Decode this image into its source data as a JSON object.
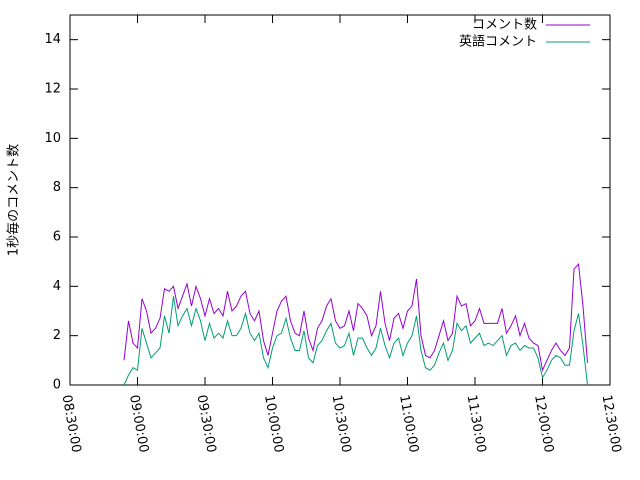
{
  "chart_data": {
    "type": "line",
    "ylabel": "1秒毎のコメント数",
    "x": [
      "08:54:00",
      "08:56:00",
      "08:58:00",
      "09:00:00",
      "09:02:00",
      "09:04:00",
      "09:06:00",
      "09:08:00",
      "09:10:00",
      "09:12:00",
      "09:14:00",
      "09:16:00",
      "09:18:00",
      "09:20:00",
      "09:22:00",
      "09:24:00",
      "09:26:00",
      "09:28:00",
      "09:30:00",
      "09:32:00",
      "09:34:00",
      "09:36:00",
      "09:38:00",
      "09:40:00",
      "09:42:00",
      "09:44:00",
      "09:46:00",
      "09:48:00",
      "09:50:00",
      "09:52:00",
      "09:54:00",
      "09:56:00",
      "09:58:00",
      "10:00:00",
      "10:02:00",
      "10:04:00",
      "10:06:00",
      "10:08:00",
      "10:10:00",
      "10:12:00",
      "10:14:00",
      "10:16:00",
      "10:18:00",
      "10:20:00",
      "10:22:00",
      "10:24:00",
      "10:26:00",
      "10:28:00",
      "10:30:00",
      "10:32:00",
      "10:34:00",
      "10:36:00",
      "10:38:00",
      "10:40:00",
      "10:42:00",
      "10:44:00",
      "10:46:00",
      "10:48:00",
      "10:50:00",
      "10:52:00",
      "10:54:00",
      "10:56:00",
      "10:58:00",
      "11:00:00",
      "11:02:00",
      "11:04:00",
      "11:06:00",
      "11:08:00",
      "11:10:00",
      "11:12:00",
      "11:14:00",
      "11:16:00",
      "11:18:00",
      "11:20:00",
      "11:22:00",
      "11:24:00",
      "11:26:00",
      "11:28:00",
      "11:30:00",
      "11:32:00",
      "11:34:00",
      "11:36:00",
      "11:38:00",
      "11:40:00",
      "11:42:00",
      "11:44:00",
      "11:46:00",
      "11:48:00",
      "11:50:00",
      "11:52:00",
      "11:54:00",
      "11:56:00",
      "11:58:00",
      "12:00:00",
      "12:02:00",
      "12:04:00",
      "12:06:00",
      "12:08:00",
      "12:10:00",
      "12:12:00",
      "12:14:00",
      "12:16:00",
      "12:18:00",
      "12:20:00"
    ],
    "series": [
      {
        "name": "コメント数",
        "color": "#9400d3",
        "values": [
          1.0,
          2.6,
          1.7,
          1.5,
          3.5,
          3.0,
          2.1,
          2.3,
          2.7,
          3.9,
          3.8,
          4.0,
          3.1,
          3.6,
          4.1,
          3.2,
          4.0,
          3.5,
          2.8,
          3.5,
          2.9,
          3.1,
          2.8,
          3.8,
          3.0,
          3.2,
          3.6,
          3.8,
          2.9,
          2.6,
          3.0,
          1.8,
          1.2,
          2.1,
          3.0,
          3.4,
          3.6,
          2.6,
          2.1,
          2.0,
          3.0,
          1.9,
          1.4,
          2.3,
          2.6,
          3.2,
          3.5,
          2.6,
          2.3,
          2.4,
          3.0,
          2.2,
          3.3,
          3.1,
          2.8,
          2.0,
          2.4,
          3.8,
          2.5,
          1.8,
          2.7,
          2.9,
          2.3,
          3.0,
          3.2,
          4.3,
          2.0,
          1.2,
          1.1,
          1.4,
          2.0,
          2.6,
          1.8,
          2.1,
          3.6,
          3.2,
          3.3,
          2.4,
          2.6,
          3.1,
          2.5,
          2.5,
          2.5,
          2.5,
          3.1,
          2.1,
          2.4,
          2.8,
          2.0,
          2.5,
          1.9,
          1.7,
          1.6,
          0.6,
          1.0,
          1.4,
          1.7,
          1.4,
          1.2,
          1.5,
          4.7,
          4.9,
          3.2,
          0.9
        ]
      },
      {
        "name": "英語コメント",
        "color": "#009e73",
        "values": [
          0.0,
          0.4,
          0.7,
          0.6,
          2.3,
          1.7,
          1.1,
          1.3,
          1.5,
          2.8,
          2.1,
          3.6,
          2.4,
          2.8,
          3.1,
          2.4,
          3.1,
          2.6,
          1.8,
          2.5,
          1.9,
          2.1,
          1.9,
          2.6,
          2.0,
          2.0,
          2.3,
          2.9,
          2.1,
          1.8,
          2.1,
          1.1,
          0.7,
          1.5,
          2.0,
          2.1,
          2.7,
          1.9,
          1.4,
          1.4,
          2.2,
          1.1,
          0.9,
          1.6,
          1.8,
          2.2,
          2.5,
          1.7,
          1.5,
          1.6,
          2.1,
          1.2,
          1.9,
          1.9,
          1.5,
          1.2,
          1.5,
          2.3,
          1.6,
          1.1,
          1.7,
          1.9,
          1.2,
          1.7,
          2.0,
          2.8,
          1.4,
          0.7,
          0.6,
          0.8,
          1.3,
          1.7,
          1.0,
          1.4,
          2.5,
          2.2,
          2.4,
          1.7,
          1.9,
          2.1,
          1.6,
          1.7,
          1.6,
          1.8,
          2.0,
          1.2,
          1.6,
          1.7,
          1.4,
          1.6,
          1.5,
          1.5,
          1.1,
          0.3,
          0.6,
          1.0,
          1.2,
          1.1,
          0.8,
          0.8,
          2.2,
          2.9,
          1.6,
          0.0
        ]
      }
    ],
    "xlim": [
      "08:30:00",
      "12:30:00"
    ],
    "xticks": [
      "08:30:00",
      "09:00:00",
      "09:30:00",
      "10:00:00",
      "10:30:00",
      "11:00:00",
      "11:30:00",
      "12:00:00",
      "12:30:00"
    ],
    "ylim": [
      0,
      15
    ],
    "yticks": [
      0,
      2,
      4,
      6,
      8,
      10,
      12,
      14
    ],
    "legend": "top-right"
  }
}
